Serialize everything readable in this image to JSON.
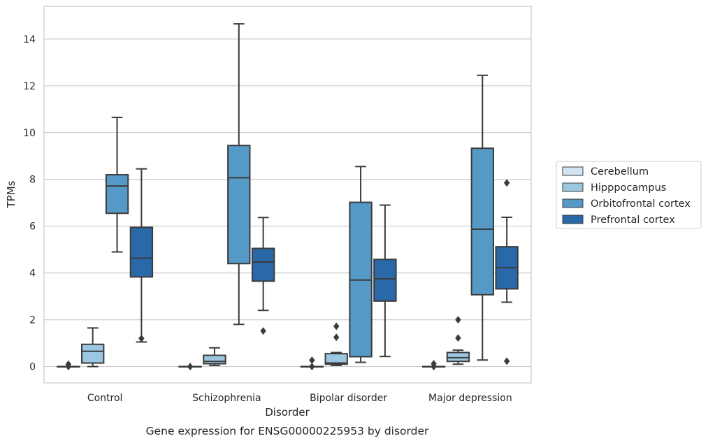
{
  "chart_data": {
    "type": "box",
    "xlabel": "Disorder",
    "ylabel": "TPMs",
    "caption": "Gene expression for ENSG00000225953 by disorder",
    "ylim": [
      -0.7,
      15.4
    ],
    "yticks": [
      0,
      2,
      4,
      6,
      8,
      10,
      12,
      14
    ],
    "grid": true,
    "legend_position": "right",
    "categories": [
      "Control",
      "Schizophrenia",
      "Bipolar disorder",
      "Major depression"
    ],
    "series": [
      {
        "name": "Cerebellum",
        "color": "#d2e3f2",
        "boxes": [
          {
            "whislo": 0.0,
            "q1": 0.0,
            "med": 0.0,
            "q3": 0.0,
            "whishi": 0.0,
            "fliers": [
              0.1,
              0.0
            ]
          },
          {
            "whislo": 0.0,
            "q1": 0.0,
            "med": 0.0,
            "q3": 0.0,
            "whishi": 0.0,
            "fliers": [
              0.0
            ]
          },
          {
            "whislo": 0.0,
            "q1": 0.0,
            "med": 0.0,
            "q3": 0.0,
            "whishi": 0.0,
            "fliers": [
              0.27,
              0.0
            ]
          },
          {
            "whislo": 0.0,
            "q1": 0.0,
            "med": 0.0,
            "q3": 0.0,
            "whishi": 0.0,
            "fliers": [
              0.12,
              0.0
            ]
          }
        ]
      },
      {
        "name": "Hipppocampus",
        "color": "#9cc7e1",
        "boxes": [
          {
            "whislo": 0.0,
            "q1": 0.15,
            "med": 0.65,
            "q3": 0.95,
            "whishi": 1.65,
            "fliers": []
          },
          {
            "whislo": 0.05,
            "q1": 0.12,
            "med": 0.22,
            "q3": 0.48,
            "whishi": 0.8,
            "fliers": []
          },
          {
            "whislo": 0.05,
            "q1": 0.1,
            "med": 0.15,
            "q3": 0.55,
            "whishi": 0.6,
            "fliers": [
              1.25,
              1.72
            ]
          },
          {
            "whislo": 0.1,
            "q1": 0.22,
            "med": 0.38,
            "q3": 0.6,
            "whishi": 0.7,
            "fliers": [
              1.22,
              2.0
            ]
          }
        ]
      },
      {
        "name": "Orbitofrontal cortex",
        "color": "#5599c7",
        "boxes": [
          {
            "whislo": 4.9,
            "q1": 6.55,
            "med": 7.72,
            "q3": 8.2,
            "whishi": 10.65,
            "fliers": []
          },
          {
            "whislo": 1.8,
            "q1": 4.4,
            "med": 8.07,
            "q3": 9.45,
            "whishi": 14.65,
            "fliers": []
          },
          {
            "whislo": 0.18,
            "q1": 0.42,
            "med": 3.7,
            "q3": 7.02,
            "whishi": 8.55,
            "fliers": []
          },
          {
            "whislo": 0.28,
            "q1": 3.07,
            "med": 5.87,
            "q3": 9.33,
            "whishi": 12.45,
            "fliers": []
          }
        ]
      },
      {
        "name": "Prefrontal cortex",
        "color": "#2a69a9",
        "boxes": [
          {
            "whislo": 1.05,
            "q1": 3.83,
            "med": 4.63,
            "q3": 5.95,
            "whishi": 8.45,
            "fliers": [
              1.2
            ]
          },
          {
            "whislo": 2.4,
            "q1": 3.65,
            "med": 4.47,
            "q3": 5.05,
            "whishi": 6.37,
            "fliers": [
              1.52
            ]
          },
          {
            "whislo": 0.43,
            "q1": 2.8,
            "med": 3.75,
            "q3": 4.58,
            "whishi": 6.9,
            "fliers": []
          },
          {
            "whislo": 2.75,
            "q1": 3.32,
            "med": 4.23,
            "q3": 5.12,
            "whishi": 6.38,
            "fliers": [
              7.85,
              0.23
            ]
          }
        ]
      }
    ]
  }
}
